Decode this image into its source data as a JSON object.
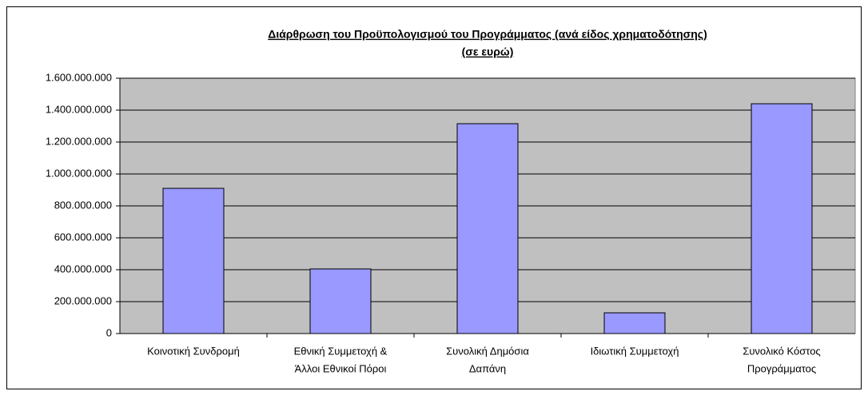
{
  "chart_data": {
    "type": "bar",
    "title": "Διάρθρωση του Προϋπολογισμού του Προγράμματος (ανά είδος χρηματοδότησης)",
    "subtitle": "(σε ευρώ)",
    "categories": [
      [
        "Κοινοτική Συνδρομή"
      ],
      [
        "Εθνική Συμμετοχή &",
        "Άλλοι Εθνικοί Πόροι"
      ],
      [
        "Συνολική Δημόσια",
        "Δαπάνη"
      ],
      [
        "Ιδιωτική Συμμετοχή"
      ],
      [
        "Συνολικό Κόστος",
        "Προγράμματος"
      ]
    ],
    "values": [
      910000000,
      405000000,
      1315000000,
      130000000,
      1440000000
    ],
    "color": "#9999ff",
    "ylim": [
      0,
      1600000000
    ],
    "yticks": [
      0,
      {
        "value": 200000000,
        "label": "200.000.000"
      },
      {
        "value": 400000000,
        "label": "400.000.000"
      },
      {
        "value": 600000000,
        "label": "600.000.000"
      },
      {
        "value": 800000000,
        "label": "800.000.000"
      },
      {
        "value": 1000000000,
        "label": "1.000.000.000"
      },
      {
        "value": 1200000000,
        "label": "1.200.000.000"
      },
      {
        "value": 1400000000,
        "label": "1.400.000.000"
      },
      {
        "value": 1600000000,
        "label": "1.600.000.000"
      }
    ],
    "grid": true
  }
}
